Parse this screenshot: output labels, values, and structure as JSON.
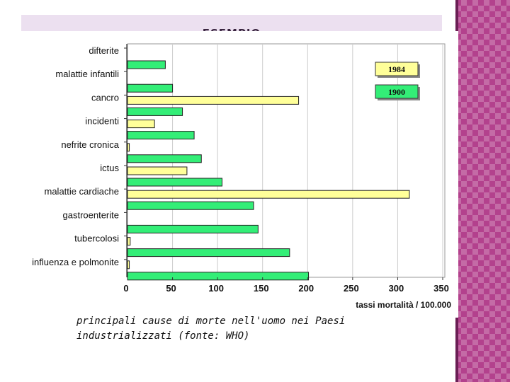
{
  "slide": {
    "title": "ESEMPIO",
    "caption": "principali cause di morte nell'uomo nei Paesi industrializzati (fonte: WHO)"
  },
  "colors": {
    "series_1984": "#ffff99",
    "series_1900": "#33ee77",
    "accent": "#b3418d"
  },
  "chart_data": {
    "type": "bar",
    "orientation": "horizontal",
    "categories": [
      "difterite",
      "malattie infantili",
      "cancro",
      "incidenti",
      "nefrite cronica",
      "ictus",
      "malattie cardiache",
      "gastroenterite",
      "tubercolosi",
      "influenza e polmonite"
    ],
    "series": [
      {
        "name": "1984",
        "values": [
          0,
          0,
          190,
          30,
          2,
          66,
          313,
          0,
          3,
          2
        ]
      },
      {
        "name": "1900",
        "values": [
          42,
          50,
          61,
          74,
          82,
          105,
          140,
          145,
          180,
          201
        ]
      }
    ],
    "xlabel": "tassi mortalità / 100.000",
    "xlim": [
      0,
      350
    ],
    "xticks": [
      "0",
      "50",
      "100",
      "150",
      "200",
      "250",
      "300",
      "350"
    ],
    "legend_position": "top-right",
    "grid": "vertical"
  }
}
